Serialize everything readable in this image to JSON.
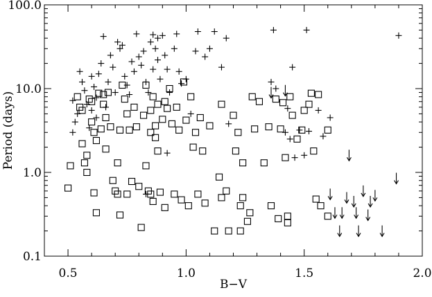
{
  "chart_data": {
    "type": "scatter",
    "xlabel": "B−V",
    "ylabel": "Period (days)",
    "xlim": [
      0.4,
      2.0
    ],
    "ylim": [
      0.1,
      100.0
    ],
    "y_scale": "log",
    "x_ticks": [
      {
        "value": 0.5,
        "label": "0.5"
      },
      {
        "value": 1.0,
        "label": "1.0"
      },
      {
        "value": 1.5,
        "label": "1.5"
      },
      {
        "value": 2.0,
        "label": "2.0"
      }
    ],
    "y_ticks": [
      {
        "value": 0.1,
        "label": "0.1"
      },
      {
        "value": 1.0,
        "label": "1.0"
      },
      {
        "value": 10.0,
        "label": "10.0"
      },
      {
        "value": 100.0,
        "label": "100.0"
      }
    ],
    "series": [
      {
        "marker": "plus",
        "points": [
          [
            0.52,
            7.2
          ],
          [
            0.52,
            3.0
          ],
          [
            0.53,
            4.0
          ],
          [
            0.54,
            5.0
          ],
          [
            0.55,
            16.0
          ],
          [
            0.56,
            12.0
          ],
          [
            0.57,
            9.5
          ],
          [
            0.58,
            6.5
          ],
          [
            0.59,
            3.4
          ],
          [
            0.6,
            14.0
          ],
          [
            0.6,
            5.5
          ],
          [
            0.61,
            10.5
          ],
          [
            0.62,
            7.8
          ],
          [
            0.62,
            4.5
          ],
          [
            0.63,
            15.0
          ],
          [
            0.64,
            20.0
          ],
          [
            0.65,
            42.0
          ],
          [
            0.66,
            6.0
          ],
          [
            0.67,
            12.0
          ],
          [
            0.68,
            25.0
          ],
          [
            0.69,
            18.0
          ],
          [
            0.7,
            9.0
          ],
          [
            0.71,
            36.0
          ],
          [
            0.72,
            30.0
          ],
          [
            0.73,
            33.0
          ],
          [
            0.74,
            14.0
          ],
          [
            0.75,
            11.0
          ],
          [
            0.76,
            8.5
          ],
          [
            0.77,
            21.0
          ],
          [
            0.78,
            16.0
          ],
          [
            0.79,
            45.0
          ],
          [
            0.8,
            24.0
          ],
          [
            0.81,
            19.0
          ],
          [
            0.82,
            28.0
          ],
          [
            0.83,
            12.0
          ],
          [
            0.84,
            9.0
          ],
          [
            0.85,
            36.0
          ],
          [
            0.86,
            44.0
          ],
          [
            0.86,
            17.0
          ],
          [
            0.87,
            30.0
          ],
          [
            0.88,
            40.0
          ],
          [
            0.88,
            22.0
          ],
          [
            0.89,
            13.0
          ],
          [
            0.9,
            43.0
          ],
          [
            0.91,
            25.0
          ],
          [
            0.92,
            17.0
          ],
          [
            0.93,
            9.0
          ],
          [
            0.95,
            30.0
          ],
          [
            0.96,
            45.0
          ],
          [
            0.97,
            16.0
          ],
          [
            0.98,
            11.5
          ],
          [
            1.0,
            13.0
          ],
          [
            1.02,
            5.0
          ],
          [
            1.04,
            28.0
          ],
          [
            1.05,
            48.0
          ],
          [
            1.08,
            24.0
          ],
          [
            1.1,
            30.0
          ],
          [
            1.12,
            48.0
          ],
          [
            1.15,
            18.0
          ],
          [
            1.17,
            40.0
          ],
          [
            1.18,
            3.8
          ],
          [
            1.36,
            12.0
          ],
          [
            1.37,
            50.0
          ],
          [
            1.38,
            10.0
          ],
          [
            1.42,
            3.0
          ],
          [
            1.43,
            5.8
          ],
          [
            1.45,
            18.0
          ],
          [
            1.44,
            2.5
          ],
          [
            1.46,
            1.5
          ],
          [
            1.48,
            3.2
          ],
          [
            1.5,
            1.6
          ],
          [
            1.51,
            50.0
          ],
          [
            1.52,
            3.1
          ],
          [
            1.56,
            5.5
          ],
          [
            1.58,
            2.7
          ],
          [
            1.61,
            4.5
          ],
          [
            1.9,
            43.0
          ],
          [
            0.92,
            1.7
          ],
          [
            0.83,
            0.55
          ]
        ]
      },
      {
        "marker": "square",
        "points": [
          [
            0.5,
            0.65
          ],
          [
            0.51,
            1.2
          ],
          [
            0.54,
            8.0
          ],
          [
            0.55,
            6.0
          ],
          [
            0.56,
            5.5
          ],
          [
            0.56,
            2.2
          ],
          [
            0.57,
            1.3
          ],
          [
            0.58,
            1.6
          ],
          [
            0.58,
            1.0
          ],
          [
            0.59,
            7.5
          ],
          [
            0.6,
            7.0
          ],
          [
            0.6,
            4.0
          ],
          [
            0.61,
            3.0
          ],
          [
            0.61,
            0.57
          ],
          [
            0.62,
            2.4
          ],
          [
            0.62,
            0.33
          ],
          [
            0.63,
            8.8
          ],
          [
            0.64,
            3.3
          ],
          [
            0.65,
            8.5
          ],
          [
            0.65,
            6.5
          ],
          [
            0.66,
            4.5
          ],
          [
            0.66,
            1.9
          ],
          [
            0.67,
            9.0
          ],
          [
            0.68,
            3.5
          ],
          [
            0.69,
            0.8
          ],
          [
            0.7,
            0.6
          ],
          [
            0.71,
            1.3
          ],
          [
            0.71,
            0.55
          ],
          [
            0.72,
            3.2
          ],
          [
            0.72,
            0.31
          ],
          [
            0.73,
            11.0
          ],
          [
            0.74,
            7.5
          ],
          [
            0.75,
            5.0
          ],
          [
            0.75,
            0.55
          ],
          [
            0.76,
            3.2
          ],
          [
            0.77,
            0.78
          ],
          [
            0.78,
            6.0
          ],
          [
            0.79,
            3.5
          ],
          [
            0.8,
            0.68
          ],
          [
            0.81,
            0.22
          ],
          [
            0.82,
            4.8
          ],
          [
            0.83,
            11.0
          ],
          [
            0.83,
            1.2
          ],
          [
            0.84,
            0.6
          ],
          [
            0.85,
            5.5
          ],
          [
            0.85,
            3.0
          ],
          [
            0.85,
            0.55
          ],
          [
            0.86,
            8.0
          ],
          [
            0.86,
            0.45
          ],
          [
            0.87,
            3.6
          ],
          [
            0.87,
            2.6
          ],
          [
            0.88,
            6.5
          ],
          [
            0.88,
            1.8
          ],
          [
            0.89,
            0.58
          ],
          [
            0.9,
            4.3
          ],
          [
            0.91,
            7.0
          ],
          [
            0.91,
            0.38
          ],
          [
            0.92,
            5.8
          ],
          [
            0.93,
            10.0
          ],
          [
            0.94,
            3.8
          ],
          [
            0.95,
            0.55
          ],
          [
            0.96,
            6.0
          ],
          [
            0.97,
            3.2
          ],
          [
            0.98,
            0.47
          ],
          [
            0.99,
            12.0
          ],
          [
            1.0,
            4.2
          ],
          [
            1.01,
            0.4
          ],
          [
            1.02,
            8.0
          ],
          [
            1.03,
            2.0
          ],
          [
            1.04,
            3.0
          ],
          [
            1.05,
            0.55
          ],
          [
            1.06,
            4.5
          ],
          [
            1.07,
            1.8
          ],
          [
            1.08,
            0.43
          ],
          [
            1.1,
            3.6
          ],
          [
            1.12,
            0.2
          ],
          [
            1.14,
            0.88
          ],
          [
            1.15,
            6.5
          ],
          [
            1.17,
            0.6
          ],
          [
            1.18,
            0.2
          ],
          [
            1.2,
            4.8
          ],
          [
            1.21,
            1.8
          ],
          [
            1.22,
            3.0
          ],
          [
            1.23,
            0.4
          ],
          [
            1.24,
            1.3
          ],
          [
            1.26,
            0.26
          ],
          [
            1.28,
            8.0
          ],
          [
            1.29,
            3.3
          ],
          [
            1.31,
            7.0
          ],
          [
            1.33,
            1.3
          ],
          [
            1.35,
            3.5
          ],
          [
            1.36,
            0.4
          ],
          [
            1.38,
            7.5
          ],
          [
            1.39,
            0.28
          ],
          [
            1.4,
            3.3
          ],
          [
            1.41,
            6.8
          ],
          [
            1.42,
            1.5
          ],
          [
            1.43,
            0.25
          ],
          [
            1.44,
            8.0
          ],
          [
            1.45,
            4.8
          ],
          [
            1.47,
            2.5
          ],
          [
            1.49,
            3.2
          ],
          [
            1.5,
            5.5
          ],
          [
            1.52,
            6.5
          ],
          [
            1.53,
            8.8
          ],
          [
            1.54,
            1.8
          ],
          [
            1.55,
            0.48
          ],
          [
            1.56,
            8.5
          ],
          [
            1.57,
            0.4
          ],
          [
            1.6,
            0.3
          ],
          [
            1.6,
            3.2
          ],
          [
            1.15,
            0.5
          ],
          [
            1.23,
            0.2
          ],
          [
            1.24,
            0.5
          ],
          [
            1.27,
            0.33
          ],
          [
            1.43,
            0.3
          ]
        ]
      },
      {
        "marker": "arrow-down",
        "points": [
          [
            1.36,
            9.0
          ],
          [
            1.42,
            9.5
          ],
          [
            1.61,
            0.55
          ],
          [
            1.63,
            0.33
          ],
          [
            1.65,
            0.2
          ],
          [
            1.66,
            0.33
          ],
          [
            1.68,
            0.5
          ],
          [
            1.69,
            1.6
          ],
          [
            1.71,
            0.45
          ],
          [
            1.72,
            0.33
          ],
          [
            1.73,
            0.2
          ],
          [
            1.75,
            0.6
          ],
          [
            1.77,
            0.31
          ],
          [
            1.78,
            0.45
          ],
          [
            1.8,
            0.53
          ],
          [
            1.83,
            0.2
          ],
          [
            1.89,
            0.85
          ]
        ]
      }
    ]
  }
}
